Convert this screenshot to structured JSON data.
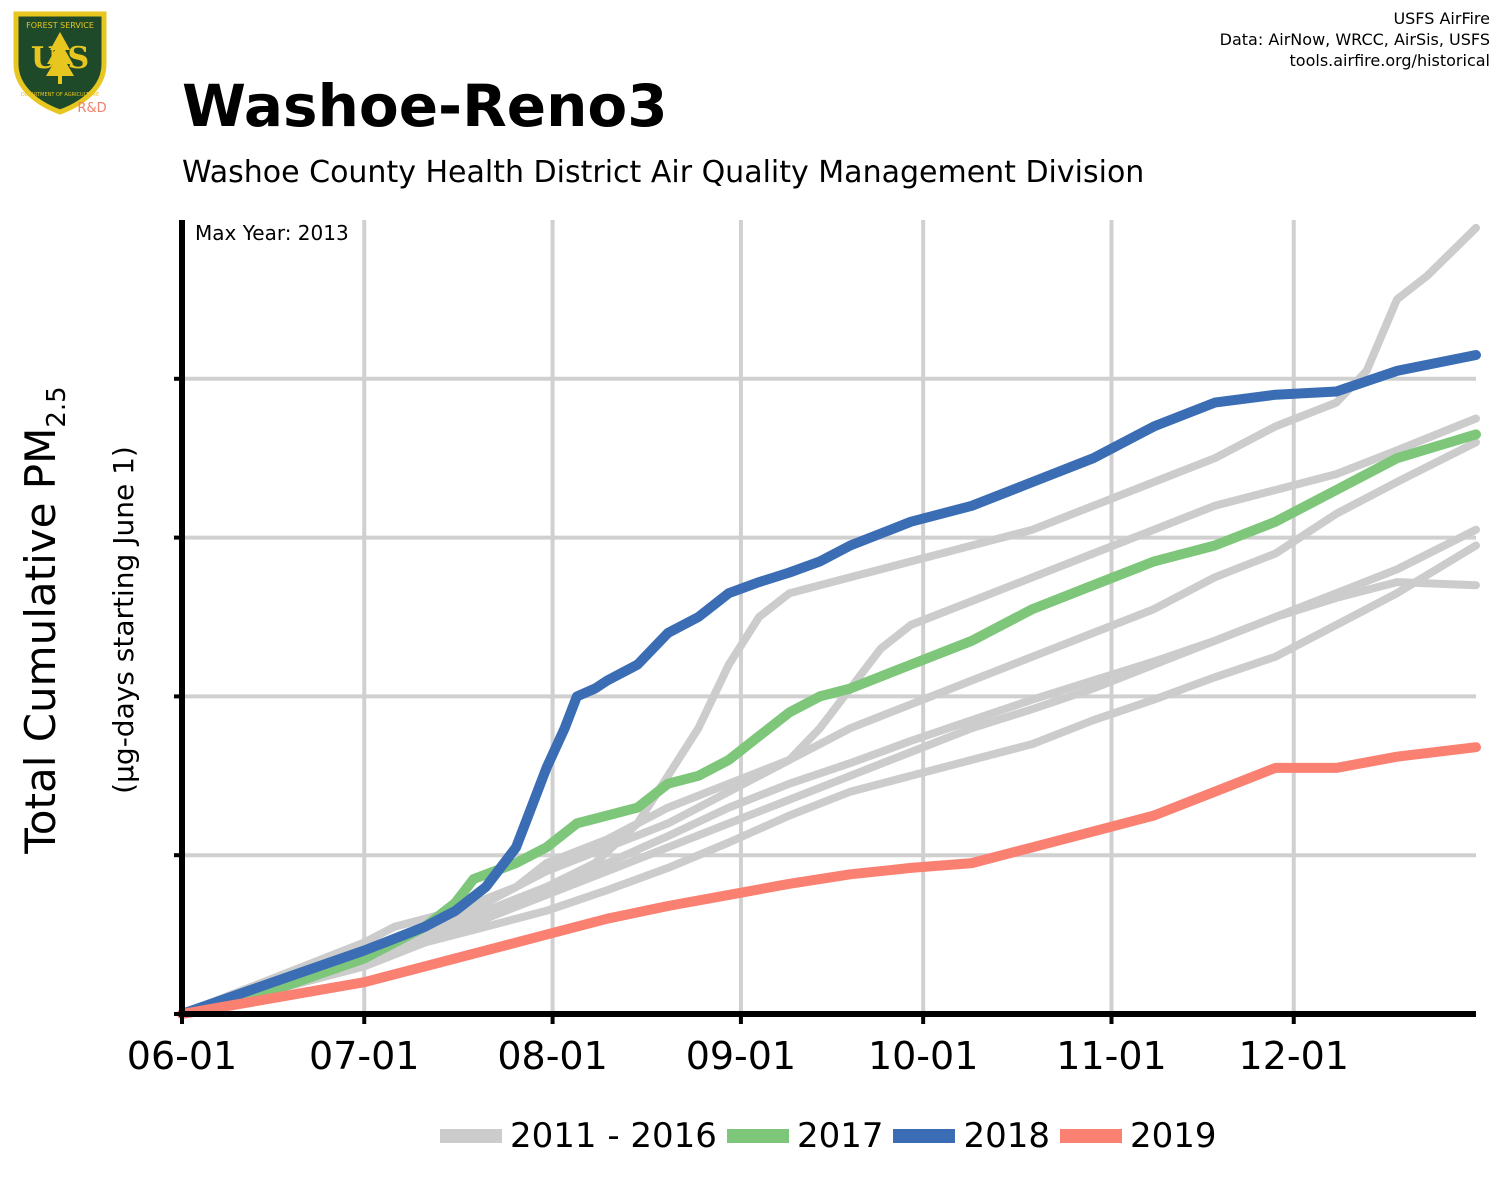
{
  "header": {
    "title": "Washoe-Reno3",
    "subtitle": "Washoe County Health District Air Quality Management Division",
    "credits": [
      "USFS AirFire",
      "Data: AirNow, WRCC, AirSis, USFS",
      "tools.airfire.org/historical"
    ]
  },
  "logo": {
    "top_text": "FOREST SERVICE",
    "letters": "U S",
    "bottom_text": "DEPARTMENT OF AGRICULTURE",
    "badge": "R&D",
    "colors": {
      "shield": "#1f4a2a",
      "border": "#e8c620",
      "badge": "#f4816b"
    }
  },
  "annotation": "Max Year: 2013",
  "colors": {
    "grey": "#cccccc",
    "green": "#7ec77a",
    "blue": "#3a6db4",
    "red": "#fa8072",
    "grid": "#d0d0d0",
    "axis": "#000000"
  },
  "chart_data": {
    "type": "line",
    "ylabel_main": "Total Cumulative PM",
    "ylabel_sub": "2.5",
    "ylabel_units": "(µg-days starting June 1)",
    "x_tick_labels": [
      "06-01",
      "07-01",
      "08-01",
      "09-01",
      "10-01",
      "11-01",
      "12-01"
    ],
    "x_ticks_day": [
      0,
      30,
      61,
      92,
      122,
      153,
      183
    ],
    "xlim_day": [
      0,
      213
    ],
    "y_unlabeled_gridlines": [
      1,
      2,
      3,
      4
    ],
    "ylim": [
      0,
      5
    ],
    "grid": true,
    "legend_position": "bottom",
    "legend": [
      {
        "label": "2011 - 2016",
        "color": "#cccccc"
      },
      {
        "label": "2017",
        "color": "#7ec77a"
      },
      {
        "label": "2018",
        "color": "#3a6db4"
      },
      {
        "label": "2019",
        "color": "#fa8072"
      }
    ],
    "series": [
      {
        "name": "2011 - 2016",
        "color": "#cccccc",
        "x": [
          0,
          15,
          30,
          40,
          50,
          60,
          68,
          75,
          80,
          85,
          90,
          95,
          100,
          110,
          115,
          120,
          125,
          130,
          140,
          150,
          160,
          170,
          180,
          190,
          195,
          200,
          205,
          213
        ],
        "y": [
          0,
          0.15,
          0.35,
          0.55,
          0.65,
          0.8,
          0.95,
          1.2,
          1.5,
          1.8,
          2.2,
          2.5,
          2.65,
          2.75,
          2.8,
          2.85,
          2.9,
          2.95,
          3.05,
          3.2,
          3.35,
          3.5,
          3.7,
          3.85,
          4.05,
          4.5,
          4.65,
          4.95
        ]
      },
      {
        "name": "2011 - 2016",
        "color": "#cccccc",
        "x": [
          0,
          20,
          30,
          35,
          45,
          55,
          60,
          70,
          80,
          90,
          100,
          110,
          120,
          130,
          140,
          150,
          160,
          170,
          180,
          190,
          200,
          213
        ],
        "y": [
          0,
          0.3,
          0.45,
          0.55,
          0.65,
          0.8,
          0.95,
          1.1,
          1.3,
          1.45,
          1.6,
          1.8,
          1.95,
          2.1,
          2.25,
          2.4,
          2.55,
          2.75,
          2.9,
          3.15,
          3.35,
          3.6
        ]
      },
      {
        "name": "2011 - 2016",
        "color": "#cccccc",
        "x": [
          0,
          20,
          30,
          40,
          50,
          60,
          70,
          80,
          90,
          100,
          105,
          110,
          115,
          120,
          130,
          140,
          150,
          160,
          170,
          180,
          190,
          200,
          213
        ],
        "y": [
          0,
          0.25,
          0.4,
          0.55,
          0.7,
          0.9,
          1.05,
          1.2,
          1.4,
          1.6,
          1.8,
          2.05,
          2.3,
          2.45,
          2.6,
          2.75,
          2.9,
          3.05,
          3.2,
          3.3,
          3.4,
          3.55,
          3.75
        ]
      },
      {
        "name": "2011 - 2016",
        "color": "#cccccc",
        "x": [
          0,
          20,
          30,
          40,
          50,
          60,
          70,
          80,
          90,
          100,
          110,
          120,
          130,
          140,
          150,
          160,
          170,
          180,
          190,
          200,
          213
        ],
        "y": [
          0,
          0.25,
          0.35,
          0.5,
          0.6,
          0.75,
          0.9,
          1.05,
          1.2,
          1.35,
          1.5,
          1.65,
          1.8,
          1.92,
          2.05,
          2.2,
          2.35,
          2.5,
          2.65,
          2.8,
          3.05
        ]
      },
      {
        "name": "2011 - 2016",
        "color": "#cccccc",
        "x": [
          0,
          20,
          30,
          40,
          50,
          60,
          70,
          80,
          90,
          100,
          110,
          120,
          130,
          140,
          150,
          160,
          170,
          180,
          190,
          200,
          213
        ],
        "y": [
          0,
          0.25,
          0.35,
          0.45,
          0.55,
          0.65,
          0.78,
          0.92,
          1.08,
          1.25,
          1.4,
          1.5,
          1.6,
          1.7,
          1.85,
          1.98,
          2.12,
          2.25,
          2.45,
          2.65,
          2.95
        ]
      },
      {
        "name": "2011 - 2016",
        "color": "#cccccc",
        "x": [
          0,
          20,
          30,
          40,
          50,
          60,
          70,
          80,
          90,
          100,
          110,
          120,
          130,
          140,
          150,
          160,
          170,
          180,
          190,
          200,
          213
        ],
        "y": [
          0,
          0.2,
          0.3,
          0.45,
          0.6,
          0.8,
          0.95,
          1.12,
          1.3,
          1.45,
          1.58,
          1.72,
          1.85,
          1.98,
          2.1,
          2.22,
          2.35,
          2.5,
          2.62,
          2.72,
          2.7
        ]
      },
      {
        "name": "2017",
        "color": "#7ec77a",
        "x": [
          0,
          15,
          30,
          40,
          45,
          48,
          55,
          60,
          65,
          70,
          75,
          80,
          85,
          90,
          95,
          100,
          105,
          110,
          120,
          130,
          140,
          150,
          160,
          170,
          180,
          190,
          200,
          213
        ],
        "y": [
          0,
          0.15,
          0.35,
          0.55,
          0.7,
          0.85,
          0.95,
          1.05,
          1.2,
          1.25,
          1.3,
          1.45,
          1.5,
          1.6,
          1.75,
          1.9,
          2.0,
          2.05,
          2.2,
          2.35,
          2.55,
          2.7,
          2.85,
          2.95,
          3.1,
          3.3,
          3.5,
          3.65
        ]
      },
      {
        "name": "2018",
        "color": "#3a6db4",
        "x": [
          0,
          15,
          30,
          40,
          45,
          50,
          55,
          58,
          60,
          63,
          65,
          68,
          70,
          75,
          80,
          85,
          90,
          95,
          100,
          105,
          110,
          120,
          130,
          140,
          150,
          160,
          170,
          180,
          190,
          200,
          213
        ],
        "y": [
          0,
          0.2,
          0.4,
          0.55,
          0.65,
          0.8,
          1.05,
          1.35,
          1.55,
          1.8,
          2.0,
          2.05,
          2.1,
          2.2,
          2.4,
          2.5,
          2.65,
          2.72,
          2.78,
          2.85,
          2.95,
          3.1,
          3.2,
          3.35,
          3.5,
          3.7,
          3.85,
          3.9,
          3.92,
          4.05,
          4.15
        ]
      },
      {
        "name": "2019",
        "color": "#fa8072",
        "x": [
          0,
          15,
          30,
          40,
          50,
          60,
          70,
          80,
          90,
          100,
          110,
          120,
          130,
          140,
          150,
          160,
          170,
          180,
          190,
          200,
          213
        ],
        "y": [
          0,
          0.1,
          0.2,
          0.3,
          0.4,
          0.5,
          0.6,
          0.68,
          0.75,
          0.82,
          0.88,
          0.92,
          0.95,
          1.05,
          1.15,
          1.25,
          1.4,
          1.55,
          1.55,
          1.62,
          1.68
        ]
      }
    ]
  }
}
